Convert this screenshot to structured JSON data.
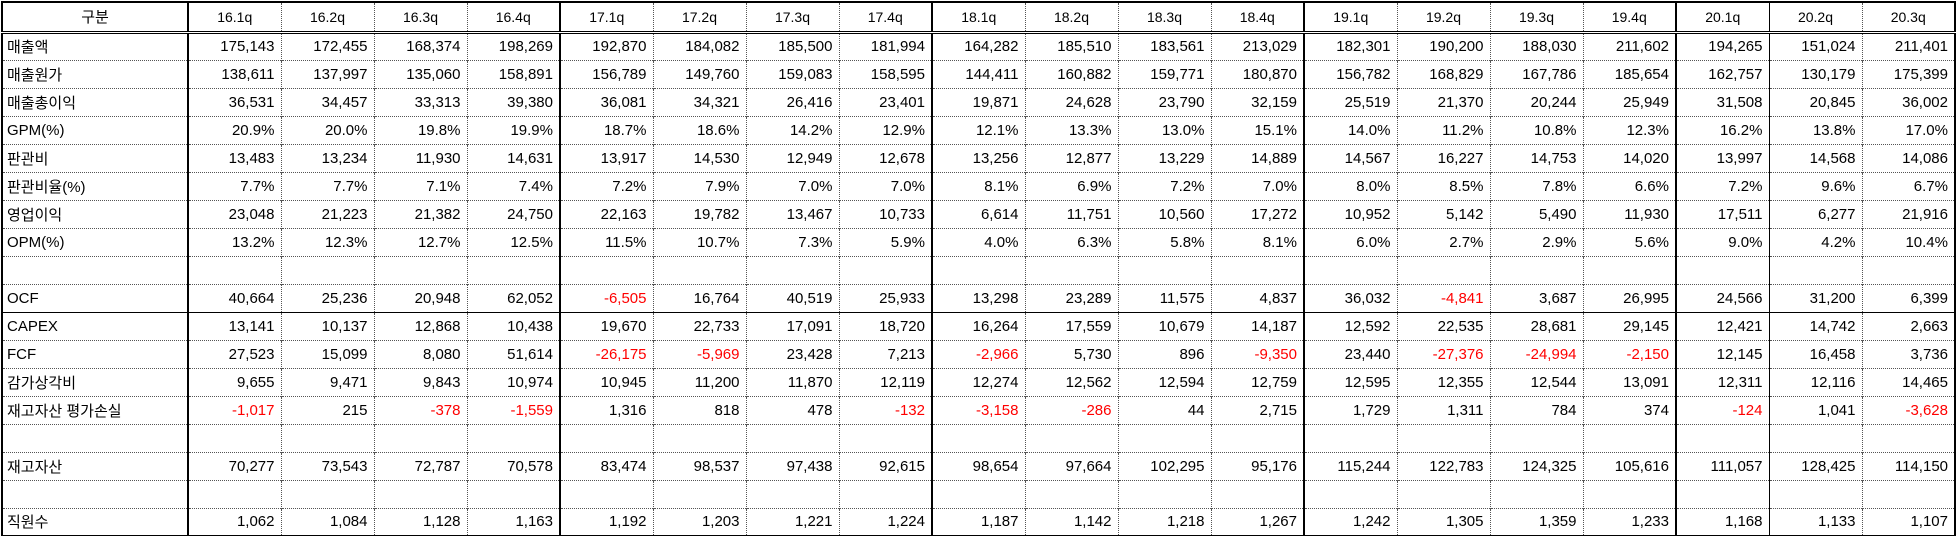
{
  "table": {
    "corner_label": "구분",
    "columns": [
      "16.1q",
      "16.2q",
      "16.3q",
      "16.4q",
      "17.1q",
      "17.2q",
      "17.3q",
      "17.4q",
      "18.1q",
      "18.2q",
      "18.3q",
      "18.4q",
      "19.1q",
      "19.2q",
      "19.3q",
      "19.4q",
      "20.1q",
      "20.2q",
      "20.3q"
    ],
    "rows": [
      {
        "label": "매출액",
        "values": [
          "175,143",
          "172,455",
          "168,374",
          "198,269",
          "192,870",
          "184,082",
          "185,500",
          "181,994",
          "164,282",
          "185,510",
          "183,561",
          "213,029",
          "182,301",
          "190,200",
          "188,030",
          "211,602",
          "194,265",
          "151,024",
          "211,401"
        ]
      },
      {
        "label": "매출원가",
        "values": [
          "138,611",
          "137,997",
          "135,060",
          "158,891",
          "156,789",
          "149,760",
          "159,083",
          "158,595",
          "144,411",
          "160,882",
          "159,771",
          "180,870",
          "156,782",
          "168,829",
          "167,786",
          "185,654",
          "162,757",
          "130,179",
          "175,399"
        ]
      },
      {
        "label": "매출총이익",
        "values": [
          "36,531",
          "34,457",
          "33,313",
          "39,380",
          "36,081",
          "34,321",
          "26,416",
          "23,401",
          "19,871",
          "24,628",
          "23,790",
          "32,159",
          "25,519",
          "21,370",
          "20,244",
          "25,949",
          "31,508",
          "20,845",
          "36,002"
        ]
      },
      {
        "label": "GPM(%)",
        "values": [
          "20.9%",
          "20.0%",
          "19.8%",
          "19.9%",
          "18.7%",
          "18.6%",
          "14.2%",
          "12.9%",
          "12.1%",
          "13.3%",
          "13.0%",
          "15.1%",
          "14.0%",
          "11.2%",
          "10.8%",
          "12.3%",
          "16.2%",
          "13.8%",
          "17.0%"
        ]
      },
      {
        "label": "판관비",
        "values": [
          "13,483",
          "13,234",
          "11,930",
          "14,631",
          "13,917",
          "14,530",
          "12,949",
          "12,678",
          "13,256",
          "12,877",
          "13,229",
          "14,889",
          "14,567",
          "16,227",
          "14,753",
          "14,020",
          "13,997",
          "14,568",
          "14,086"
        ]
      },
      {
        "label": "판관비율(%)",
        "values": [
          "7.7%",
          "7.7%",
          "7.1%",
          "7.4%",
          "7.2%",
          "7.9%",
          "7.0%",
          "7.0%",
          "8.1%",
          "6.9%",
          "7.2%",
          "7.0%",
          "8.0%",
          "8.5%",
          "7.8%",
          "6.6%",
          "7.2%",
          "9.6%",
          "6.7%"
        ]
      },
      {
        "label": "영업이익",
        "values": [
          "23,048",
          "21,223",
          "21,382",
          "24,750",
          "22,163",
          "19,782",
          "13,467",
          "10,733",
          "6,614",
          "11,751",
          "10,560",
          "17,272",
          "10,952",
          "5,142",
          "5,490",
          "11,930",
          "17,511",
          "6,277",
          "21,916"
        ]
      },
      {
        "label": "OPM(%)",
        "values": [
          "13.2%",
          "12.3%",
          "12.7%",
          "12.5%",
          "11.5%",
          "10.7%",
          "7.3%",
          "5.9%",
          "4.0%",
          "6.3%",
          "5.8%",
          "8.1%",
          "6.0%",
          "2.7%",
          "2.9%",
          "5.6%",
          "9.0%",
          "4.2%",
          "10.4%"
        ]
      },
      {
        "label": "",
        "values": []
      },
      {
        "label": "OCF",
        "values": [
          "40,664",
          "25,236",
          "20,948",
          "62,052",
          "-6,505",
          "16,764",
          "40,519",
          "25,933",
          "13,298",
          "23,289",
          "11,575",
          "4,837",
          "36,032",
          "-4,841",
          "3,687",
          "26,995",
          "24,566",
          "31,200",
          "6,399"
        ]
      },
      {
        "label": "CAPEX",
        "values": [
          "13,141",
          "10,137",
          "12,868",
          "10,438",
          "19,670",
          "22,733",
          "17,091",
          "18,720",
          "16,264",
          "17,559",
          "10,679",
          "14,187",
          "12,592",
          "22,535",
          "28,681",
          "29,145",
          "12,421",
          "14,742",
          "2,663"
        ]
      },
      {
        "label": "FCF",
        "values": [
          "27,523",
          "15,099",
          "8,080",
          "51,614",
          "-26,175",
          "-5,969",
          "23,428",
          "7,213",
          "-2,966",
          "5,730",
          "896",
          "-9,350",
          "23,440",
          "-27,376",
          "-24,994",
          "-2,150",
          "12,145",
          "16,458",
          "3,736"
        ]
      },
      {
        "label": "감가상각비",
        "values": [
          "9,655",
          "9,471",
          "9,843",
          "10,974",
          "10,945",
          "11,200",
          "11,870",
          "12,119",
          "12,274",
          "12,562",
          "12,594",
          "12,759",
          "12,595",
          "12,355",
          "12,544",
          "13,091",
          "12,311",
          "12,116",
          "14,465"
        ]
      },
      {
        "label": "재고자산 평가손실",
        "values": [
          "-1,017",
          "215",
          "-378",
          "-1,559",
          "1,316",
          "818",
          "478",
          "-132",
          "-3,158",
          "-286",
          "44",
          "2,715",
          "1,729",
          "1,311",
          "784",
          "374",
          "-124",
          "1,041",
          "-3,628"
        ]
      },
      {
        "label": "",
        "values": []
      },
      {
        "label": "재고자산",
        "values": [
          "70,277",
          "73,543",
          "72,787",
          "70,578",
          "83,474",
          "98,537",
          "97,438",
          "92,615",
          "98,654",
          "97,664",
          "102,295",
          "95,176",
          "115,244",
          "122,783",
          "124,325",
          "105,616",
          "111,057",
          "128,425",
          "114,150"
        ]
      },
      {
        "label": "",
        "values": []
      },
      {
        "label": "직원수",
        "values": [
          "1,062",
          "1,084",
          "1,128",
          "1,163",
          "1,192",
          "1,203",
          "1,221",
          "1,224",
          "1,187",
          "1,142",
          "1,218",
          "1,267",
          "1,242",
          "1,305",
          "1,359",
          "1,233",
          "1,168",
          "1,133",
          "1,107"
        ]
      }
    ]
  },
  "colors": {
    "text": "#000000",
    "negative_value": "#ff0000",
    "border": "#000000",
    "background": "#ffffff"
  }
}
